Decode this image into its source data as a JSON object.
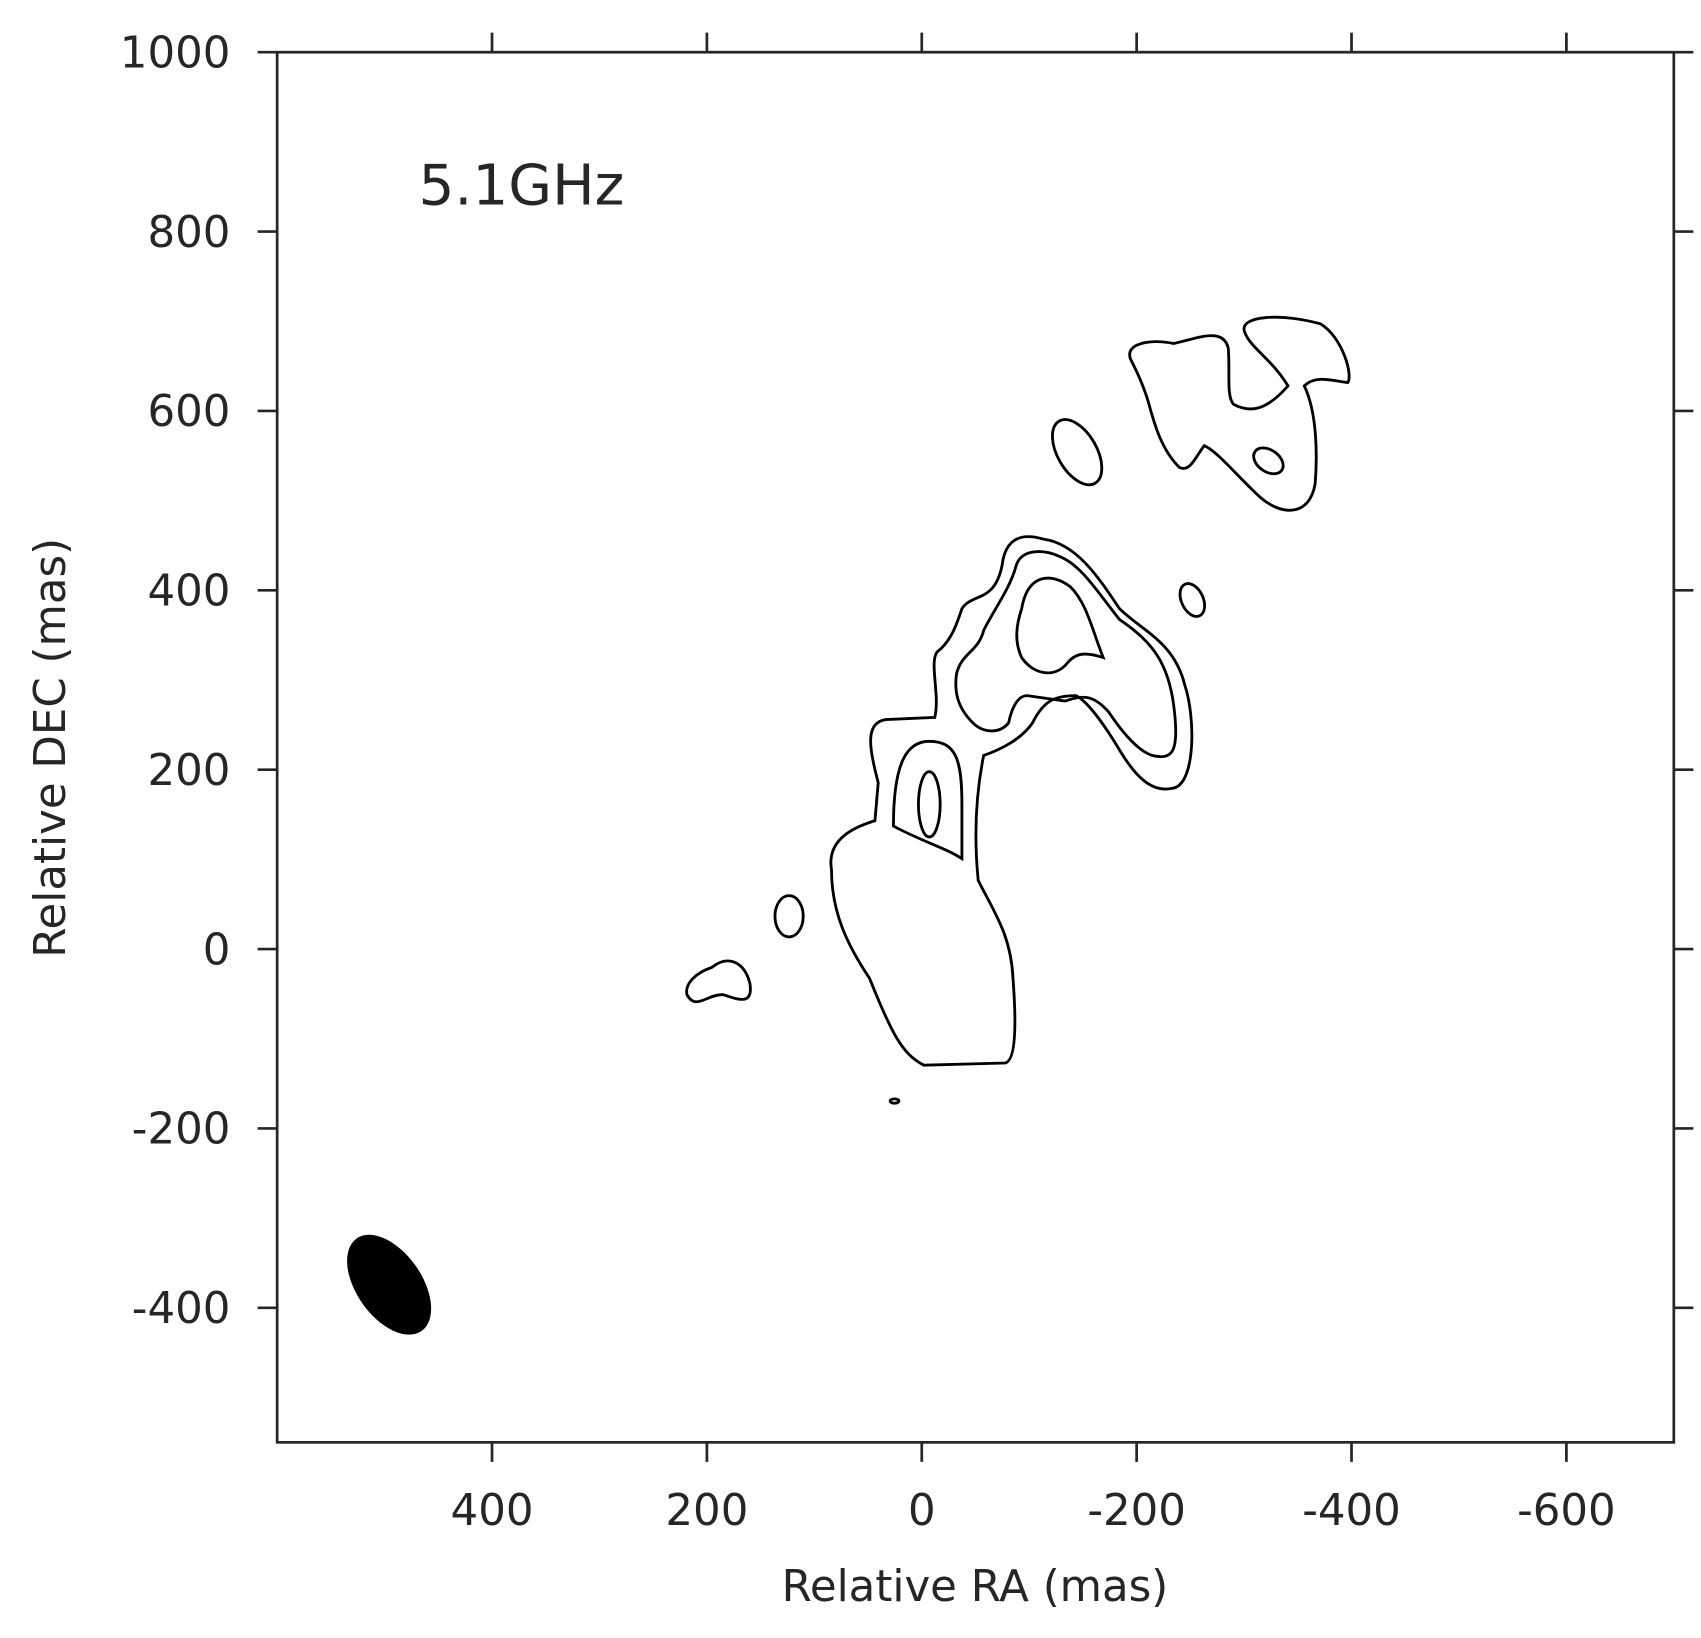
{
  "chart_data": {
    "type": "contour",
    "annotation": "5.1GHz",
    "xlabel": "Relative RA (mas)",
    "ylabel": "Relative DEC (mas)",
    "xlim": [
      600,
      -700
    ],
    "ylim": [
      -550,
      1000
    ],
    "xticks": [
      400,
      200,
      0,
      -200,
      -400,
      -600
    ],
    "yticks": [
      -400,
      -200,
      0,
      200,
      400,
      600,
      800,
      1000
    ],
    "color": "#000000"
  }
}
